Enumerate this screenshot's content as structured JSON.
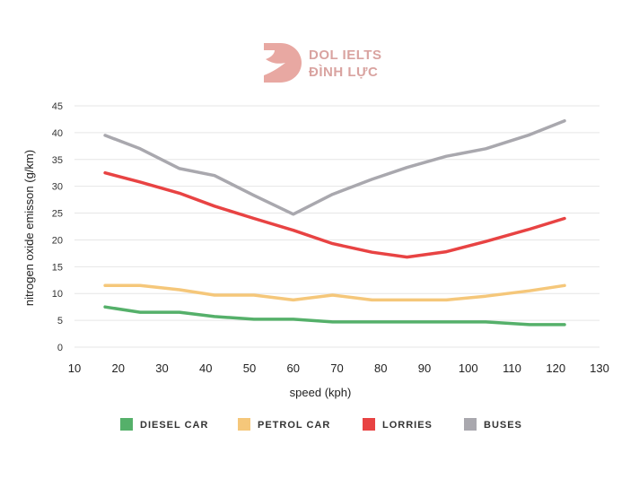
{
  "logo": {
    "line1": "DOL IELTS",
    "line2": "ĐÌNH LỰC",
    "color": "#d9a3a0"
  },
  "chart_data": {
    "type": "line",
    "title": "",
    "xlabel": "speed (kph)",
    "ylabel": "nitrogen oxide emisson (g/km)",
    "xlim": [
      10,
      130
    ],
    "ylim": [
      0,
      45
    ],
    "x_ticks": [
      10,
      20,
      30,
      40,
      50,
      60,
      70,
      80,
      90,
      100,
      110,
      120,
      130
    ],
    "y_ticks": [
      0,
      5,
      10,
      15,
      20,
      25,
      30,
      35,
      40,
      45
    ],
    "grid": "horizontal",
    "legend_position": "bottom",
    "series": [
      {
        "name": "DIESEL CAR",
        "color": "#55b06a",
        "x": [
          17,
          25,
          34,
          42,
          51,
          60,
          69,
          78,
          86,
          95,
          104,
          114,
          122
        ],
        "y": [
          7.5,
          6.5,
          6.5,
          5.7,
          5.2,
          5.2,
          4.7,
          4.7,
          4.7,
          4.7,
          4.7,
          4.2,
          4.2
        ]
      },
      {
        "name": "PETROL CAR",
        "color": "#f5c77a",
        "x": [
          17,
          25,
          34,
          42,
          51,
          60,
          69,
          78,
          86,
          95,
          104,
          114,
          122
        ],
        "y": [
          11.5,
          11.5,
          10.7,
          9.7,
          9.7,
          8.8,
          9.7,
          8.8,
          8.8,
          8.8,
          9.5,
          10.5,
          11.5
        ]
      },
      {
        "name": "LORRIES",
        "color": "#e84343",
        "x": [
          17,
          25,
          34,
          42,
          51,
          60,
          69,
          78,
          86,
          95,
          104,
          114,
          122
        ],
        "y": [
          32.5,
          30.8,
          28.7,
          26.3,
          24,
          21.8,
          19.3,
          17.7,
          16.8,
          17.8,
          19.7,
          22,
          24
        ]
      },
      {
        "name": "BUSES",
        "color": "#a9a8ae",
        "x": [
          17,
          25,
          34,
          42,
          51,
          60,
          69,
          78,
          86,
          95,
          104,
          114,
          122
        ],
        "y": [
          39.5,
          37,
          33.3,
          32,
          28.3,
          24.8,
          28.5,
          31.3,
          33.5,
          35.6,
          37,
          39.6,
          42.2
        ]
      }
    ]
  }
}
